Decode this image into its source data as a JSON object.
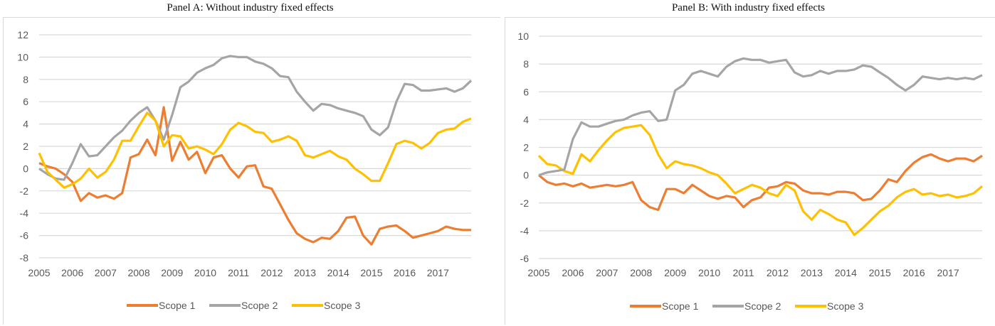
{
  "chart_data": [
    {
      "type": "line",
      "title": "Panel A: Without industry fixed effects",
      "xlabel": "",
      "ylabel": "",
      "xlim": [
        2005,
        2018
      ],
      "ylim": [
        -8,
        12
      ],
      "yticks": [
        -8,
        -6,
        -4,
        -2,
        0,
        2,
        4,
        6,
        8,
        10,
        12
      ],
      "xtick_labels": [
        "2005",
        "2006",
        "2007",
        "2008",
        "2009",
        "2010",
        "2011",
        "2012",
        "2013",
        "2014",
        "2015",
        "2016",
        "2017"
      ],
      "grid": true,
      "legend_position": "bottom",
      "x_step": 0.25,
      "series": [
        {
          "name": "Scope 1",
          "color": "#ED7D31",
          "values": [
            0.5,
            0.2,
            0.0,
            -0.5,
            -1.2,
            -2.9,
            -2.2,
            -2.6,
            -2.4,
            -2.7,
            -2.2,
            1.0,
            1.3,
            2.6,
            1.2,
            5.5,
            0.7,
            2.4,
            0.8,
            1.5,
            -0.4,
            1.0,
            1.2,
            0.0,
            -0.8,
            0.2,
            0.3,
            -1.6,
            -1.8,
            -3.2,
            -4.6,
            -5.8,
            -6.3,
            -6.6,
            -6.2,
            -6.3,
            -5.6,
            -4.4,
            -4.3,
            -6.0,
            -6.8,
            -5.4,
            -5.2,
            -5.1,
            -5.6,
            -6.2,
            -6.0,
            -5.8,
            -5.6,
            -5.2,
            -5.4,
            -5.5,
            -5.5
          ]
        },
        {
          "name": "Scope 2",
          "color": "#A5A5A5",
          "values": [
            0.0,
            -0.5,
            -0.9,
            -1.0,
            0.5,
            2.2,
            1.1,
            1.2,
            2.0,
            2.8,
            3.4,
            4.3,
            5.0,
            5.5,
            4.3,
            2.6,
            4.8,
            7.3,
            7.8,
            8.6,
            9.0,
            9.3,
            9.9,
            10.1,
            10.0,
            10.0,
            9.6,
            9.4,
            9.0,
            8.3,
            8.2,
            6.9,
            6.0,
            5.2,
            5.8,
            5.7,
            5.4,
            5.2,
            5.0,
            4.7,
            3.5,
            3.0,
            3.7,
            6.0,
            7.6,
            7.5,
            7.0,
            7.0,
            7.1,
            7.2,
            6.9,
            7.2,
            7.9
          ]
        },
        {
          "name": "Scope 3",
          "color": "#FFC000",
          "values": [
            1.4,
            -0.3,
            -1.0,
            -1.7,
            -1.4,
            -0.9,
            0.0,
            -0.8,
            -0.3,
            0.8,
            2.5,
            2.5,
            3.8,
            5.0,
            4.3,
            2.0,
            3.0,
            2.9,
            1.8,
            2.0,
            1.7,
            1.3,
            2.2,
            3.5,
            4.1,
            3.8,
            3.3,
            3.2,
            2.4,
            2.6,
            2.9,
            2.5,
            1.2,
            1.0,
            1.3,
            1.6,
            1.1,
            0.8,
            0.0,
            -0.5,
            -1.1,
            -1.1,
            0.5,
            2.2,
            2.5,
            2.3,
            1.8,
            2.3,
            3.2,
            3.5,
            3.6,
            4.2,
            4.5
          ]
        }
      ]
    },
    {
      "type": "line",
      "title": "Panel B: With industry fixed effects",
      "xlabel": "",
      "ylabel": "",
      "xlim": [
        2005,
        2018
      ],
      "ylim": [
        -6,
        10
      ],
      "yticks": [
        -6,
        -4,
        -2,
        0,
        2,
        4,
        6,
        8,
        10
      ],
      "xtick_labels": [
        "2005",
        "2006",
        "2007",
        "2008",
        "2009",
        "2010",
        "2011",
        "2012",
        "2013",
        "2014",
        "2015",
        "2016",
        "2017"
      ],
      "grid": true,
      "legend_position": "bottom",
      "x_step": 0.25,
      "series": [
        {
          "name": "Scope 1",
          "color": "#ED7D31",
          "values": [
            0.0,
            -0.5,
            -0.7,
            -0.6,
            -0.8,
            -0.6,
            -0.9,
            -0.8,
            -0.7,
            -0.8,
            -0.7,
            -0.5,
            -1.8,
            -2.3,
            -2.5,
            -1.0,
            -1.0,
            -1.3,
            -0.7,
            -1.1,
            -1.5,
            -1.7,
            -1.5,
            -1.6,
            -2.3,
            -1.8,
            -1.6,
            -0.9,
            -0.8,
            -0.5,
            -0.6,
            -1.1,
            -1.3,
            -1.3,
            -1.4,
            -1.2,
            -1.2,
            -1.3,
            -1.8,
            -1.7,
            -1.1,
            -0.3,
            -0.5,
            0.3,
            0.9,
            1.3,
            1.5,
            1.2,
            1.0,
            1.2,
            1.2,
            1.0,
            1.4
          ]
        },
        {
          "name": "Scope 3",
          "color": "#FFC000",
          "values": [
            1.4,
            0.8,
            0.7,
            0.3,
            0.1,
            1.5,
            1.0,
            1.8,
            2.5,
            3.1,
            3.4,
            3.5,
            3.6,
            2.9,
            1.5,
            0.5,
            1.0,
            0.8,
            0.7,
            0.5,
            0.2,
            0.0,
            -0.6,
            -1.3,
            -1.0,
            -0.7,
            -0.9,
            -1.3,
            -1.5,
            -0.7,
            -1.1,
            -2.6,
            -3.2,
            -2.5,
            -2.8,
            -3.2,
            -3.4,
            -4.3,
            -3.8,
            -3.2,
            -2.6,
            -2.2,
            -1.6,
            -1.2,
            -1.0,
            -1.4,
            -1.3,
            -1.5,
            -1.4,
            -1.6,
            -1.5,
            -1.3,
            -0.8
          ]
        },
        {
          "name": "Scope 2",
          "color": "#A5A5A5",
          "values": [
            0.0,
            0.2,
            0.3,
            0.4,
            2.6,
            3.8,
            3.5,
            3.5,
            3.7,
            3.9,
            4.0,
            4.3,
            4.5,
            4.6,
            3.9,
            4.0,
            6.1,
            6.5,
            7.3,
            7.5,
            7.3,
            7.1,
            7.8,
            8.2,
            8.4,
            8.3,
            8.3,
            8.1,
            8.2,
            8.3,
            7.4,
            7.1,
            7.2,
            7.5,
            7.3,
            7.5,
            7.5,
            7.6,
            7.9,
            7.8,
            7.4,
            7.0,
            6.5,
            6.1,
            6.5,
            7.1,
            7.0,
            6.9,
            7.0,
            6.9,
            7.0,
            6.9,
            7.2
          ]
        }
      ],
      "legend_order": [
        "Scope 1",
        "Scope 2",
        "Scope 3"
      ]
    }
  ],
  "panels": {
    "a_title": "Panel A: Without industry fixed effects",
    "b_title": "Panel B: With industry fixed effects"
  }
}
